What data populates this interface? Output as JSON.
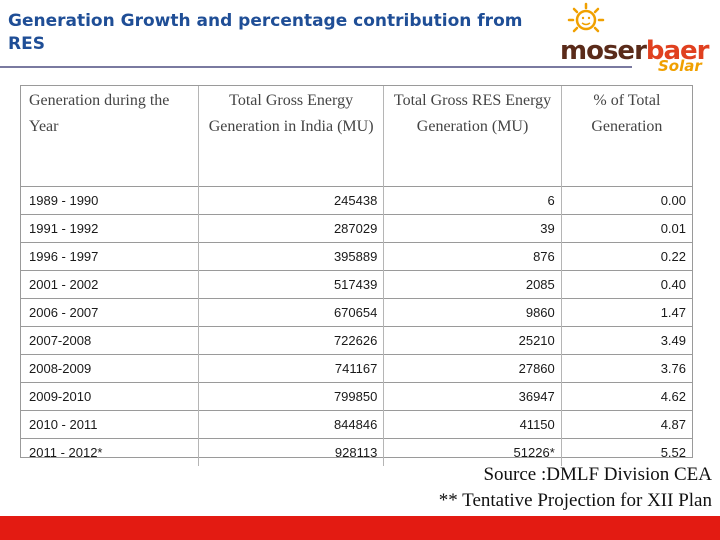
{
  "title": "Generation Growth and percentage contribution from RES",
  "logo": {
    "text_part1": "moser",
    "text_part2": "baer",
    "subtext": "Solar"
  },
  "table": {
    "headers": [
      "Generation during the Year",
      "Total Gross Energy Generation  in India (MU)",
      "Total Gross  RES Energy Generation (MU)",
      "% of Total Generation"
    ],
    "rows": [
      [
        "1989 - 1990",
        "245438",
        "6",
        "0.00"
      ],
      [
        "1991 - 1992",
        "287029",
        "39",
        "0.01"
      ],
      [
        "1996 - 1997",
        "395889",
        "876",
        "0.22"
      ],
      [
        "2001 - 2002",
        "517439",
        "2085",
        "0.40"
      ],
      [
        "2006 - 2007",
        "670654",
        "9860",
        "1.47"
      ],
      [
        "2007-2008",
        "722626",
        "25210",
        "3.49"
      ],
      [
        "2008-2009",
        "741167",
        "27860",
        "3.76"
      ],
      [
        "2009-2010",
        "799850",
        "36947",
        "4.62"
      ],
      [
        "2010 - 2011",
        "844846",
        "41150",
        "4.87"
      ],
      [
        "2011 - 2012*",
        "928113",
        "51226*",
        "5.52"
      ]
    ]
  },
  "source": "Source :DMLF Division CEA",
  "note": "** Tentative Projection for XII Plan",
  "colors": {
    "title": "#1f4e96",
    "bottom_bar": "#e31b12",
    "logo_accent": "#f0a000"
  },
  "icons": {
    "logo_sun": "sun-icon"
  }
}
